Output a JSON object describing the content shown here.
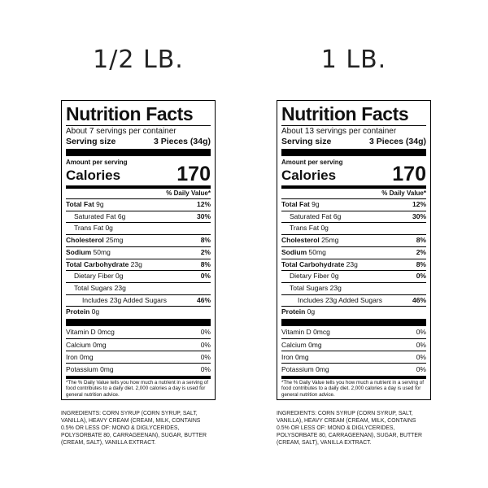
{
  "panels": [
    {
      "heading": "1/2 LB.",
      "label": {
        "title": "Nutrition Facts",
        "servings": "About 7 servings per container",
        "serving_size_label": "Serving size",
        "serving_size_value": "3 Pieces (34g)",
        "amount_per_serving": "Amount per serving",
        "calories_label": "Calories",
        "calories_value": "170",
        "daily_value_header": "% Daily Value*",
        "rows": [
          {
            "name": "Total Fat",
            "amount": "9g",
            "dv": "12%"
          },
          {
            "name": "Saturated Fat",
            "amount": "6g",
            "dv": "30%"
          },
          {
            "name": "Trans Fat",
            "amount": "0g"
          },
          {
            "name": "Cholesterol",
            "amount": "25mg",
            "dv": "8%"
          },
          {
            "name": "Sodium",
            "amount": "50mg",
            "dv": "2%"
          },
          {
            "name": "Total Carbohydrate",
            "amount": "23g",
            "dv": "8%"
          },
          {
            "name": "Dietary Fiber",
            "amount": "0g",
            "dv": "0%"
          },
          {
            "name": "Total Sugars",
            "amount": "23g"
          },
          {
            "name": "Includes 23g Added Sugars",
            "dv": "46%"
          },
          {
            "name": "Protein",
            "amount": "0g"
          }
        ],
        "vitamins": [
          {
            "name": "Vitamin D",
            "amount": "0mcg",
            "dv": "0%"
          },
          {
            "name": "Calcium",
            "amount": "0mg",
            "dv": "0%"
          },
          {
            "name": "Iron",
            "amount": "0mg",
            "dv": "0%"
          },
          {
            "name": "Potassium",
            "amount": "0mg",
            "dv": "0%"
          }
        ],
        "footnote": "*The % Daily Value tells you how much a nutrient in a serving of food contributes to a daily diet. 2,000 calories a day is used for general nutrition advice."
      },
      "ingredients": "INGREDIENTS: CORN SYRUP (CORN SYRUP, SALT, VANILLA), HEAVY CREAM (CREAM, MILK, CONTAINS 0.5% OR LESS OF: MONO & DIGLYCERIDES, POLYSORBATE 80, CARRAGEENAN), SUGAR, BUTTER (CREAM, SALT), VANILLA EXTRACT."
    },
    {
      "heading": "1 LB.",
      "label": {
        "title": "Nutrition Facts",
        "servings": "About 13 servings per container",
        "serving_size_label": "Serving size",
        "serving_size_value": "3 Pieces (34g)",
        "amount_per_serving": "Amount per serving",
        "calories_label": "Calories",
        "calories_value": "170",
        "daily_value_header": "% Daily Value*",
        "rows": [
          {
            "name": "Total Fat",
            "amount": "9g",
            "dv": "12%"
          },
          {
            "name": "Saturated Fat",
            "amount": "6g",
            "dv": "30%"
          },
          {
            "name": "Trans Fat",
            "amount": "0g"
          },
          {
            "name": "Cholesterol",
            "amount": "25mg",
            "dv": "8%"
          },
          {
            "name": "Sodium",
            "amount": "50mg",
            "dv": "2%"
          },
          {
            "name": "Total Carbohydrate",
            "amount": "23g",
            "dv": "8%"
          },
          {
            "name": "Dietary Fiber",
            "amount": "0g",
            "dv": "0%"
          },
          {
            "name": "Total Sugars",
            "amount": "23g"
          },
          {
            "name": "Includes 23g Added Sugars",
            "dv": "46%"
          },
          {
            "name": "Protein",
            "amount": "0g"
          }
        ],
        "vitamins": [
          {
            "name": "Vitamin D",
            "amount": "0mcg",
            "dv": "0%"
          },
          {
            "name": "Calcium",
            "amount": "0mg",
            "dv": "0%"
          },
          {
            "name": "Iron",
            "amount": "0mg",
            "dv": "0%"
          },
          {
            "name": "Potassium",
            "amount": "0mg",
            "dv": "0%"
          }
        ],
        "footnote": "*The % Daily Value tells you how much a nutrient in a serving of food contributes to a daily diet. 2,000 calories a day is used for general nutrition advice."
      },
      "ingredients": "INGREDIENTS: CORN SYRUP (CORN SYRUP, SALT, VANILLA), HEAVY CREAM (CREAM, MILK, CONTAINS 0.5% OR LESS OF: MONO & DIGLYCERIDES, POLYSORBATE 80, CARRAGEENAN), SUGAR, BUTTER (CREAM, SALT), VANILLA EXTRACT."
    }
  ]
}
